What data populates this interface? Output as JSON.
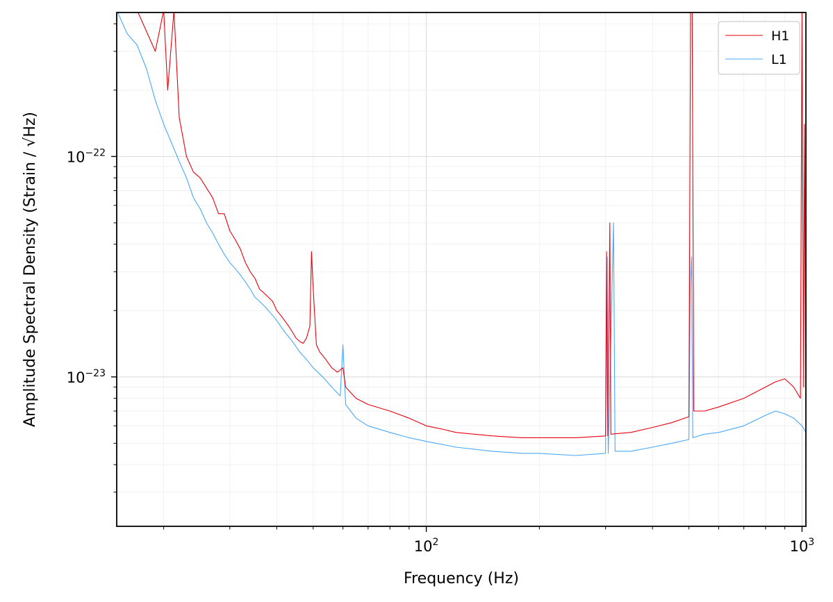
{
  "chart_data": {
    "type": "line",
    "title": "",
    "xlabel": "Frequency (Hz)",
    "ylabel": "Amplitude Spectral Density (Strain / √Hz)",
    "xscale": "log",
    "yscale": "log",
    "xlim": [
      15,
      1024
    ],
    "ylim": [
      2.1e-24,
      4.5e-22
    ],
    "grid": true,
    "legend_position": "top-right",
    "xticks": [
      {
        "value": 100,
        "base": "10",
        "exp": "2"
      },
      {
        "value": 1000,
        "base": "10",
        "exp": "3"
      }
    ],
    "yticks": [
      {
        "value": 1e-23,
        "base": "10",
        "exp": "−23"
      },
      {
        "value": 1e-22,
        "base": "10",
        "exp": "−22"
      }
    ],
    "series": [
      {
        "name": "H1",
        "color": "#e8000b",
        "points": [
          [
            15,
            4.6e-22
          ],
          [
            17,
            4.6e-22
          ],
          [
            19,
            3e-22
          ],
          [
            20,
            4.6e-22
          ],
          [
            20.5,
            2e-22
          ],
          [
            21.3,
            4.6e-22
          ],
          [
            22,
            1.5e-22
          ],
          [
            23,
            1e-22
          ],
          [
            24,
            8.5e-23
          ],
          [
            25,
            8e-23
          ],
          [
            26,
            7.2e-23
          ],
          [
            27,
            6.5e-23
          ],
          [
            28,
            5.5e-23
          ],
          [
            29,
            5.5e-23
          ],
          [
            30,
            4.6e-23
          ],
          [
            31,
            4.2e-23
          ],
          [
            32,
            3.8e-23
          ],
          [
            33,
            3.3e-23
          ],
          [
            34,
            3e-23
          ],
          [
            35,
            2.8e-23
          ],
          [
            36,
            2.5e-23
          ],
          [
            37,
            2.4e-23
          ],
          [
            38,
            2.3e-23
          ],
          [
            39,
            2.2e-23
          ],
          [
            40,
            2e-23
          ],
          [
            41,
            1.9e-23
          ],
          [
            42,
            1.8e-23
          ],
          [
            43,
            1.7e-23
          ],
          [
            44,
            1.6e-23
          ],
          [
            45,
            1.5e-23
          ],
          [
            46,
            1.45e-23
          ],
          [
            47,
            1.42e-23
          ],
          [
            48,
            1.5e-23
          ],
          [
            49,
            1.7e-23
          ],
          [
            49.5,
            3.7e-23
          ],
          [
            50,
            2.5e-23
          ],
          [
            51,
            1.4e-23
          ],
          [
            52,
            1.3e-23
          ],
          [
            54,
            1.2e-23
          ],
          [
            56,
            1.1e-23
          ],
          [
            58,
            1.05e-23
          ],
          [
            60,
            1.1e-23
          ],
          [
            61,
            9e-24
          ],
          [
            65,
            8e-24
          ],
          [
            70,
            7.5e-24
          ],
          [
            80,
            7e-24
          ],
          [
            90,
            6.5e-24
          ],
          [
            100,
            6e-24
          ],
          [
            110,
            5.8e-24
          ],
          [
            120,
            5.6e-24
          ],
          [
            150,
            5.4e-24
          ],
          [
            180,
            5.3e-24
          ],
          [
            200,
            5.3e-24
          ],
          [
            250,
            5.3e-24
          ],
          [
            300,
            5.4e-24
          ],
          [
            302,
            3.7e-23
          ],
          [
            304,
            5.4e-24
          ],
          [
            308,
            5e-23
          ],
          [
            310,
            5.5e-24
          ],
          [
            350,
            5.6e-24
          ],
          [
            400,
            5.9e-24
          ],
          [
            450,
            6.2e-24
          ],
          [
            500,
            6.6e-24
          ],
          [
            502,
            3.6e-23
          ],
          [
            505,
            4.6e-22
          ],
          [
            510,
            4.6e-22
          ],
          [
            515,
            7e-24
          ],
          [
            550,
            7e-24
          ],
          [
            600,
            7.3e-24
          ],
          [
            700,
            8e-24
          ],
          [
            800,
            9e-24
          ],
          [
            850,
            9.5e-24
          ],
          [
            900,
            9.8e-24
          ],
          [
            950,
            9e-24
          ],
          [
            990,
            8e-24
          ],
          [
            1000,
            4.6e-22
          ],
          [
            1010,
            9e-24
          ],
          [
            1015,
            1.4e-22
          ],
          [
            1024,
            7e-24
          ]
        ]
      },
      {
        "name": "L1",
        "color": "#48a8f8",
        "points": [
          [
            15,
            4.6e-22
          ],
          [
            16,
            3.6e-22
          ],
          [
            17,
            3.2e-22
          ],
          [
            18,
            2.5e-22
          ],
          [
            19,
            1.8e-22
          ],
          [
            20,
            1.4e-22
          ],
          [
            21,
            1.15e-22
          ],
          [
            22,
            9.5e-23
          ],
          [
            23,
            8e-23
          ],
          [
            24,
            6.5e-23
          ],
          [
            25,
            5.8e-23
          ],
          [
            26,
            5e-23
          ],
          [
            27,
            4.5e-23
          ],
          [
            28,
            4e-23
          ],
          [
            29,
            3.6e-23
          ],
          [
            30,
            3.3e-23
          ],
          [
            31,
            3.1e-23
          ],
          [
            32,
            2.9e-23
          ],
          [
            33,
            2.7e-23
          ],
          [
            34,
            2.5e-23
          ],
          [
            35,
            2.3e-23
          ],
          [
            36,
            2.2e-23
          ],
          [
            37,
            2.1e-23
          ],
          [
            38,
            2e-23
          ],
          [
            39,
            1.9e-23
          ],
          [
            40,
            1.8e-23
          ],
          [
            42,
            1.6e-23
          ],
          [
            44,
            1.45e-23
          ],
          [
            46,
            1.3e-23
          ],
          [
            48,
            1.2e-23
          ],
          [
            50,
            1.1e-23
          ],
          [
            53,
            1e-23
          ],
          [
            56,
            9e-24
          ],
          [
            59,
            8.2e-24
          ],
          [
            60,
            1.4e-23
          ],
          [
            61,
            7.5e-24
          ],
          [
            65,
            6.5e-24
          ],
          [
            70,
            6e-24
          ],
          [
            80,
            5.6e-24
          ],
          [
            90,
            5.3e-24
          ],
          [
            100,
            5.1e-24
          ],
          [
            120,
            4.8e-24
          ],
          [
            150,
            4.6e-24
          ],
          [
            180,
            4.5e-24
          ],
          [
            200,
            4.5e-24
          ],
          [
            250,
            4.4e-24
          ],
          [
            300,
            4.5e-24
          ],
          [
            303,
            3.5e-23
          ],
          [
            305,
            4.5e-24
          ],
          [
            315,
            5e-23
          ],
          [
            318,
            4.6e-24
          ],
          [
            350,
            4.6e-24
          ],
          [
            400,
            4.8e-24
          ],
          [
            450,
            5e-24
          ],
          [
            500,
            5.2e-24
          ],
          [
            504,
            2.5e-23
          ],
          [
            508,
            3.5e-23
          ],
          [
            512,
            5.3e-24
          ],
          [
            550,
            5.5e-24
          ],
          [
            600,
            5.6e-24
          ],
          [
            700,
            6e-24
          ],
          [
            800,
            6.7e-24
          ],
          [
            850,
            7e-24
          ],
          [
            900,
            6.8e-24
          ],
          [
            950,
            6.5e-24
          ],
          [
            1000,
            6e-24
          ],
          [
            1024,
            5.6e-24
          ]
        ]
      }
    ]
  }
}
